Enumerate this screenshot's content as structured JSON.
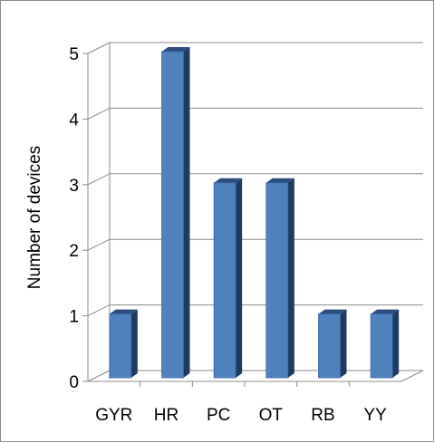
{
  "chart_data": {
    "type": "bar",
    "categories": [
      "GYR",
      "HR",
      "PC",
      "OT",
      "RB",
      "YY"
    ],
    "values": [
      1,
      5,
      3,
      3,
      1,
      1
    ],
    "title": "",
    "xlabel": "",
    "ylabel": "Number of devices",
    "ylim": [
      0,
      5
    ],
    "yticks": [
      0,
      1,
      2,
      3,
      4,
      5
    ],
    "grid": true,
    "style": "3d-column",
    "colors": {
      "bar_front": "#4f81bd",
      "bar_side": "#1f3a60",
      "bar_top": "#2c4d7e",
      "gridline": "#8c8c8c",
      "axis": "#8c8c8c"
    }
  }
}
